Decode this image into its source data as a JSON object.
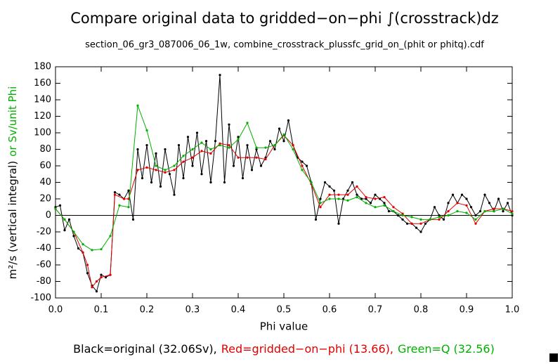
{
  "chart_data": {
    "type": "line",
    "title": "Compare original data to gridded−on−phi ∫(crosstrack)dz",
    "subtitle": "section_06_gr3_087006_06_1w, combine_crosstrack_plussfc_grid_on_(phit or phitq).cdf",
    "x_label": "Phi value",
    "y_label": "m²/s (vertical integral)",
    "y_label_alt": "or Sv/unit Phi",
    "y_label_alt_color": "#00b000",
    "xlim": [
      0,
      1
    ],
    "ylim": [
      -100,
      180
    ],
    "xticks": [
      {
        "value": 0,
        "label": "0.0"
      },
      0.1,
      0.2,
      0.3,
      0.4,
      0.5,
      0.6,
      0.7,
      0.8,
      0.9,
      {
        "value": 1,
        "label": "1.0"
      }
    ],
    "yticks": [
      -100,
      -80,
      -60,
      -40,
      -20,
      0,
      20,
      40,
      60,
      80,
      100,
      120,
      140,
      160,
      180
    ],
    "series": [
      {
        "name": "Black=original (32.06Sv),",
        "color": "#000000",
        "x": [
          0,
          0.01,
          0.02,
          0.03,
          0.04,
          0.05,
          0.06,
          0.07,
          0.08,
          0.09,
          0.1,
          0.11,
          0.12,
          0.13,
          0.14,
          0.15,
          0.16,
          0.17,
          0.18,
          0.19,
          0.2,
          0.21,
          0.22,
          0.23,
          0.24,
          0.25,
          0.26,
          0.27,
          0.28,
          0.29,
          0.3,
          0.31,
          0.32,
          0.33,
          0.34,
          0.35,
          0.36,
          0.37,
          0.38,
          0.39,
          0.4,
          0.41,
          0.42,
          0.43,
          0.44,
          0.45,
          0.46,
          0.47,
          0.48,
          0.49,
          0.5,
          0.51,
          0.52,
          0.53,
          0.54,
          0.55,
          0.56,
          0.57,
          0.58,
          0.59,
          0.6,
          0.61,
          0.62,
          0.63,
          0.64,
          0.65,
          0.66,
          0.67,
          0.68,
          0.69,
          0.7,
          0.71,
          0.72,
          0.73,
          0.74,
          0.75,
          0.76,
          0.77,
          0.78,
          0.79,
          0.8,
          0.81,
          0.82,
          0.83,
          0.84,
          0.85,
          0.86,
          0.87,
          0.88,
          0.89,
          0.9,
          0.91,
          0.92,
          0.93,
          0.94,
          0.95,
          0.96,
          0.97,
          0.98,
          0.99,
          1
        ],
        "values": [
          10,
          12,
          -18,
          -5,
          -25,
          -40,
          -45,
          -70,
          -85,
          -92,
          -72,
          -75,
          -72,
          28,
          25,
          20,
          30,
          -5,
          80,
          45,
          85,
          40,
          75,
          35,
          80,
          50,
          25,
          85,
          45,
          95,
          60,
          100,
          50,
          90,
          40,
          90,
          170,
          40,
          110,
          60,
          95,
          45,
          85,
          55,
          80,
          60,
          70,
          90,
          80,
          105,
          90,
          115,
          85,
          70,
          65,
          60,
          40,
          -5,
          20,
          40,
          35,
          30,
          -10,
          20,
          30,
          40,
          25,
          20,
          20,
          15,
          25,
          20,
          15,
          5,
          5,
          0,
          -5,
          -10,
          -10,
          -15,
          -20,
          -10,
          -5,
          10,
          0,
          -5,
          15,
          25,
          15,
          25,
          20,
          10,
          0,
          5,
          25,
          15,
          5,
          20,
          5,
          15,
          0
        ]
      },
      {
        "name": "Red=gridded−on−phi (13.66),",
        "color": "#e00000",
        "x": [
          0,
          0.02,
          0.04,
          0.06,
          0.07,
          0.08,
          0.09,
          0.1,
          0.12,
          0.13,
          0.15,
          0.16,
          0.18,
          0.2,
          0.22,
          0.24,
          0.26,
          0.28,
          0.3,
          0.32,
          0.34,
          0.36,
          0.38,
          0.4,
          0.42,
          0.44,
          0.46,
          0.48,
          0.5,
          0.52,
          0.54,
          0.56,
          0.58,
          0.6,
          0.62,
          0.64,
          0.66,
          0.68,
          0.7,
          0.72,
          0.74,
          0.76,
          0.78,
          0.8,
          0.82,
          0.84,
          0.86,
          0.88,
          0.9,
          0.92,
          0.94,
          0.96,
          0.98,
          1
        ],
        "values": [
          8,
          -5,
          -20,
          -45,
          -60,
          -87,
          -80,
          -75,
          -72,
          25,
          20,
          20,
          55,
          58,
          55,
          52,
          55,
          65,
          70,
          78,
          75,
          87,
          85,
          70,
          70,
          70,
          68,
          85,
          97,
          85,
          60,
          38,
          10,
          25,
          25,
          25,
          35,
          22,
          20,
          22,
          10,
          2,
          -10,
          -10,
          -5,
          -5,
          5,
          15,
          12,
          -10,
          5,
          8,
          8,
          5
        ]
      },
      {
        "name": "Green=Q (32.56)",
        "color": "#00b000",
        "x": [
          0,
          0.02,
          0.04,
          0.06,
          0.08,
          0.1,
          0.12,
          0.14,
          0.16,
          0.18,
          0.2,
          0.22,
          0.24,
          0.26,
          0.28,
          0.3,
          0.32,
          0.34,
          0.36,
          0.38,
          0.4,
          0.42,
          0.44,
          0.46,
          0.48,
          0.5,
          0.52,
          0.54,
          0.56,
          0.58,
          0.6,
          0.62,
          0.64,
          0.66,
          0.68,
          0.7,
          0.72,
          0.74,
          0.76,
          0.78,
          0.8,
          0.82,
          0.84,
          0.86,
          0.88,
          0.9,
          0.92,
          0.94,
          0.96,
          0.98,
          1
        ],
        "values": [
          8,
          -5,
          -20,
          -35,
          -42,
          -41,
          -25,
          12,
          10,
          133,
          103,
          60,
          55,
          60,
          72,
          80,
          88,
          80,
          85,
          82,
          92,
          112,
          82,
          82,
          85,
          98,
          80,
          55,
          40,
          15,
          20,
          20,
          18,
          22,
          15,
          10,
          12,
          5,
          0,
          -2,
          -5,
          -5,
          -2,
          0,
          5,
          3,
          -5,
          5,
          5,
          8,
          2
        ]
      }
    ]
  }
}
